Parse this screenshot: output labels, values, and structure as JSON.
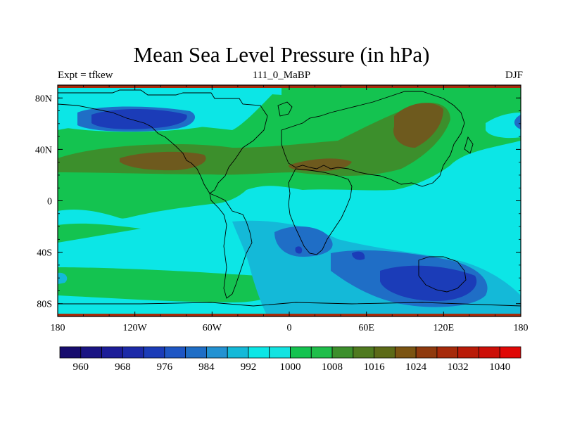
{
  "title": "Mean Sea Level Pressure (in hPa)",
  "subtitle_left": "Expt = tfkew",
  "subtitle_center": "111_0_MaBP",
  "subtitle_right": "DJF",
  "lat_ticks": [
    {
      "value": 80,
      "label": "80N"
    },
    {
      "value": 40,
      "label": "40N"
    },
    {
      "value": 0,
      "label": "0"
    },
    {
      "value": -40,
      "label": "40S"
    },
    {
      "value": -80,
      "label": "80S"
    }
  ],
  "lon_ticks": [
    {
      "value": -180,
      "label": "180"
    },
    {
      "value": -120,
      "label": "120W"
    },
    {
      "value": -60,
      "label": "60W"
    },
    {
      "value": 0,
      "label": "0"
    },
    {
      "value": 60,
      "label": "60E"
    },
    {
      "value": 120,
      "label": "120E"
    },
    {
      "value": 180,
      "label": "180"
    }
  ],
  "colorbar": {
    "levels": [
      960,
      964,
      968,
      972,
      976,
      980,
      984,
      988,
      992,
      996,
      1000,
      1004,
      1008,
      1012,
      1016,
      1020,
      1024,
      1028,
      1032,
      1036,
      1040
    ],
    "labels": [
      "960",
      "968",
      "976",
      "984",
      "992",
      "1000",
      "1008",
      "1016",
      "1024",
      "1032",
      "1040"
    ],
    "colors": [
      "#170c6e",
      "#1a1483",
      "#1c1d98",
      "#1c2aa8",
      "#1b3cb8",
      "#1e56c4",
      "#1f6ec6",
      "#2392d2",
      "#14b9d8",
      "#0ce6e6",
      "#13e3e1",
      "#14c350",
      "#1fbe4a",
      "#3c8f2c",
      "#4f7a1f",
      "#5c6a17",
      "#7b5412",
      "#8f3a0e",
      "#a62a0a",
      "#b91b08",
      "#cc0f08",
      "#e00806"
    ]
  },
  "colors": {
    "cyan": "#0ce6e6",
    "green": "#14c350",
    "dark_green": "#3c8f2c",
    "brown": "#6e5a1e",
    "light_blue": "#14b9d8",
    "blue": "#1f6ec6",
    "dark_blue": "#1b3cb8",
    "polar_red": "#a62a0a"
  }
}
